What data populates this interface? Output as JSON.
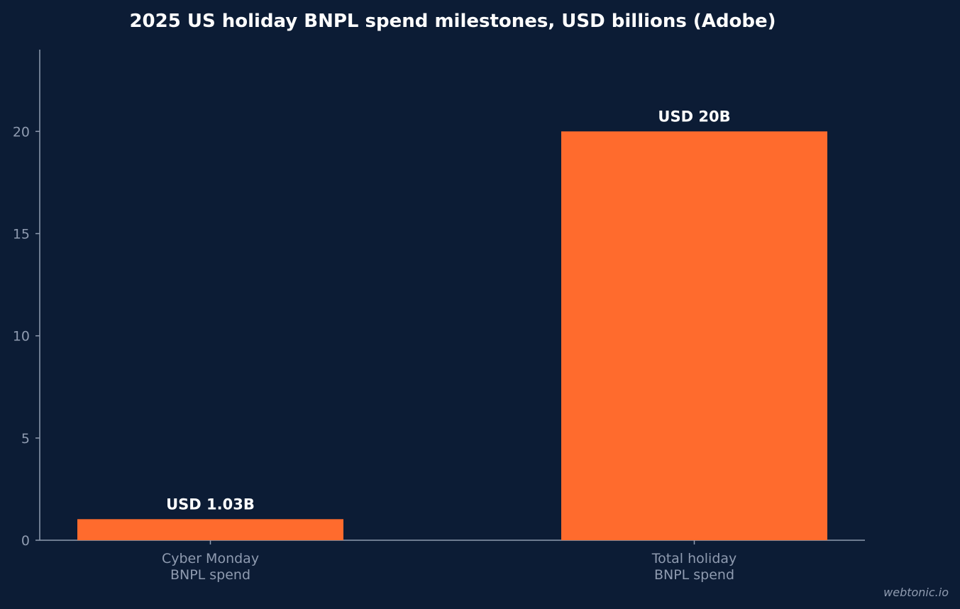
{
  "chart_data": {
    "type": "bar",
    "title": "2025 US holiday BNPL spend milestones, USD billions (Adobe)",
    "xlabel": "",
    "ylabel": "",
    "categories": [
      [
        "Cyber Monday",
        "BNPL spend"
      ],
      [
        "Total holiday",
        "BNPL spend"
      ]
    ],
    "values": [
      1.03,
      20
    ],
    "data_labels": [
      "USD 1.03B",
      "USD 20B"
    ],
    "yticks": [
      0,
      5,
      10,
      15,
      20
    ],
    "ylim": [
      0,
      24
    ],
    "grid": false,
    "legend": "none"
  },
  "colors": {
    "background": "#0c1c35",
    "bar": "#ff6b2d",
    "axis": "#8f9bb0",
    "title": "#ffffff",
    "data_label": "#ffffff"
  },
  "watermark": "webtonic.io"
}
